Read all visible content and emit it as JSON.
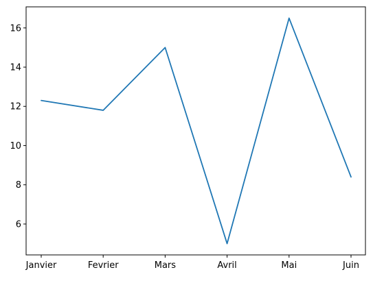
{
  "chart_data": {
    "type": "line",
    "categories": [
      "Janvier",
      "Fevrier",
      "Mars",
      "Avril",
      "Mai",
      "Juin"
    ],
    "series": [
      {
        "values": [
          12.3,
          11.8,
          15.0,
          5.0,
          16.5,
          8.4
        ],
        "color": "#1f77b4"
      }
    ],
    "title": "",
    "xlabel": "",
    "ylabel": "",
    "ylim": [
      4.425,
      17.075
    ],
    "yticks": [
      6,
      8,
      10,
      12,
      14,
      16
    ],
    "grid": false
  }
}
